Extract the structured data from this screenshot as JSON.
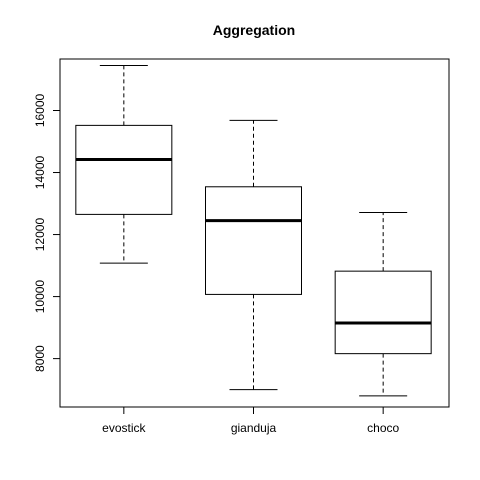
{
  "chart_data": {
    "type": "boxplot",
    "title": "Aggregation",
    "xlabel": "",
    "ylabel": "",
    "categories": [
      "evostick",
      "gianduja",
      "choco"
    ],
    "ylim": [
      6440,
      17660
    ],
    "yticks": [
      8000,
      10000,
      12000,
      14000,
      16000
    ],
    "ytick_labels": [
      "8000",
      "10000",
      "12000",
      "14000",
      "16000"
    ],
    "boxes": [
      {
        "category": "evostick",
        "whisker_low": 11080,
        "q1": 12650,
        "median": 14420,
        "q3": 15520,
        "whisker_high": 17450
      },
      {
        "category": "gianduja",
        "whisker_low": 7000,
        "q1": 10070,
        "median": 12450,
        "q3": 13540,
        "whisker_high": 15680
      },
      {
        "category": "choco",
        "whisker_low": 6800,
        "q1": 8160,
        "median": 9150,
        "q3": 10820,
        "whisker_high": 12710
      }
    ],
    "grid": false,
    "legend": "none"
  }
}
